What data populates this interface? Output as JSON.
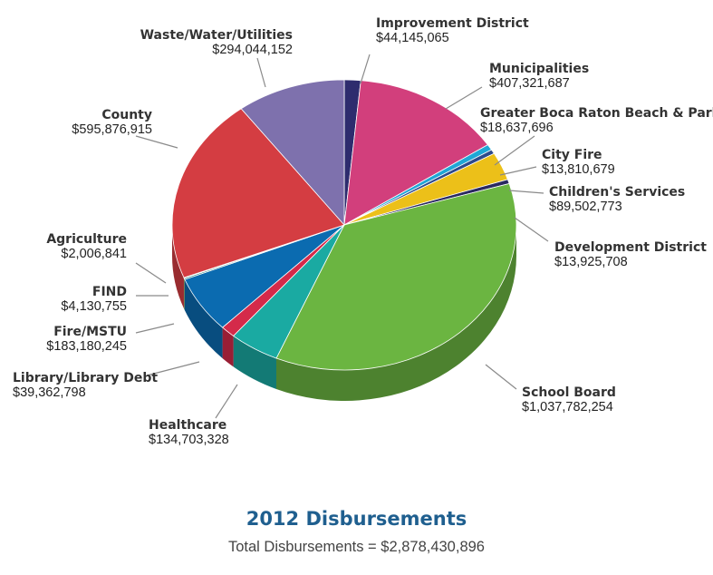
{
  "chart_data": {
    "type": "pie",
    "title": "2012 Disbursements",
    "subtitle": "Total Disbursements = $2,878,430,896",
    "slices": [
      {
        "name": "Improvement District",
        "value": 44145065,
        "value_label": "$44,145,065",
        "color": "#2e2c6e"
      },
      {
        "name": "Municipalities",
        "value": 407321687,
        "value_label": "$407,321,687",
        "color": "#d23f7c"
      },
      {
        "name": "Greater Boca Raton Beach & Park",
        "value": 18637696,
        "value_label": "$18,637,696",
        "color": "#1fa7d6"
      },
      {
        "name": "City Fire",
        "value": 13810679,
        "value_label": "$13,810,679",
        "color": "#2e4a8c"
      },
      {
        "name": "Children's Services",
        "value": 89502773,
        "value_label": "$89,502,773",
        "color": "#ecc019"
      },
      {
        "name": "Development District",
        "value": 13925708,
        "value_label": "$13,925,708",
        "color": "#2a2960"
      },
      {
        "name": "School Board",
        "value": 1037782254,
        "value_label": "$1,037,782,254",
        "color": "#6bb541"
      },
      {
        "name": "Healthcare",
        "value": 134703328,
        "value_label": "$134,703,328",
        "color": "#1aaaa2"
      },
      {
        "name": "Library/Library Debt",
        "value": 39362798,
        "value_label": "$39,362,798",
        "color": "#d42a4a"
      },
      {
        "name": "Fire/MSTU",
        "value": 183180245,
        "value_label": "$183,180,245",
        "color": "#0b6bb0"
      },
      {
        "name": "FIND",
        "value": 4130755,
        "value_label": "$4,130,755",
        "color": "#0d7a70"
      },
      {
        "name": "Agriculture",
        "value": 2006841,
        "value_label": "$2,006,841",
        "color": "#e8b81f"
      },
      {
        "name": "County",
        "value": 595876915,
        "value_label": "$595,876,915",
        "color": "#d43d42"
      },
      {
        "name": "Waste/Water/Utilities",
        "value": 294044152,
        "value_label": "$294,044,152",
        "color": "#7e71ad"
      }
    ]
  }
}
